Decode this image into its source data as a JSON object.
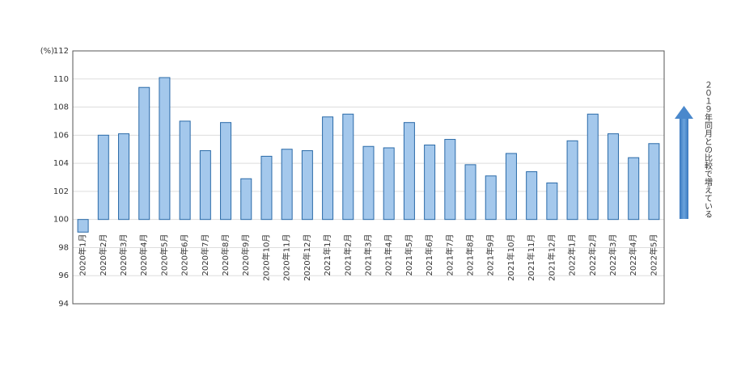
{
  "chart_data": {
    "type": "bar",
    "y_unit": "(%)",
    "note": "２０１９年同月との比較で増えている",
    "categories": [
      "2020年1月",
      "2020年2月",
      "2020年3月",
      "2020年4月",
      "2020年5月",
      "2020年6月",
      "2020年7月",
      "2020年8月",
      "2020年9月",
      "2020年10月",
      "2020年11月",
      "2020年12月",
      "2021年1月",
      "2021年2月",
      "2021年3月",
      "2021年4月",
      "2021年5月",
      "2021年6月",
      "2021年7月",
      "2021年8月",
      "2021年9月",
      "2021年10月",
      "2021年11月",
      "2021年12月",
      "2022年1月",
      "2022年2月",
      "2022年3月",
      "2022年4月",
      "2022年5月"
    ],
    "values": [
      99.1,
      106.0,
      106.1,
      109.4,
      110.1,
      107.0,
      104.9,
      106.9,
      102.9,
      104.5,
      105.0,
      104.9,
      107.3,
      107.5,
      105.2,
      105.1,
      106.9,
      105.3,
      105.7,
      103.9,
      103.1,
      104.7,
      103.4,
      102.6,
      105.6,
      107.5,
      106.1,
      104.4,
      105.4
    ],
    "baseline": 100,
    "color": "#a4c8ec",
    "ylim": [
      94,
      112
    ],
    "yticks": [
      94,
      96,
      98,
      100,
      102,
      104,
      106,
      108,
      110,
      112
    ],
    "grid": true
  }
}
